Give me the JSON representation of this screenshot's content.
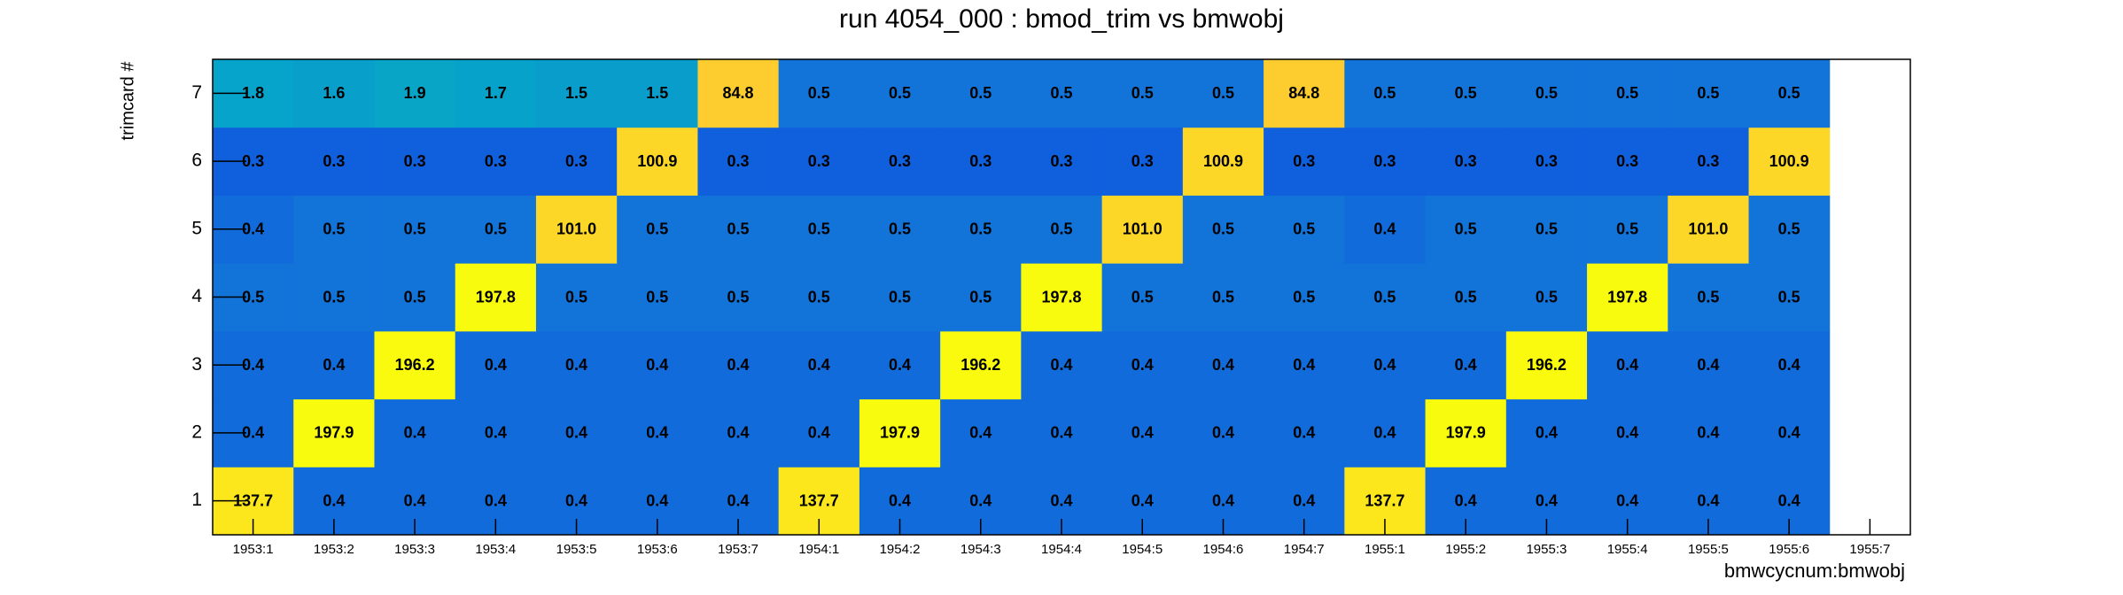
{
  "chart_data": {
    "type": "heatmap",
    "title": "run 4054_000 : bmod_trim vs bmwobj",
    "x_label": "bmwcycnum:bmwobj",
    "y_label": "trimcard #",
    "z_log": true,
    "categories": [
      "1953:1",
      "1953:2",
      "1953:3",
      "1953:4",
      "1953:5",
      "1953:6",
      "1953:7",
      "1954:1",
      "1954:2",
      "1954:3",
      "1954:4",
      "1954:5",
      "1954:6",
      "1954:7",
      "1955:1",
      "1955:2",
      "1955:3",
      "1955:4",
      "1955:5",
      "1955:6",
      "1955:7"
    ],
    "series": [
      {
        "name": "1",
        "values": [
          137.7,
          0.4,
          0.4,
          0.4,
          0.4,
          0.4,
          0.4,
          137.7,
          0.4,
          0.4,
          0.4,
          0.4,
          0.4,
          0.4,
          137.7,
          0.4,
          0.4,
          0.4,
          0.4,
          0.4,
          null
        ],
        "value_labels": [
          "137.7",
          "0.4",
          "0.4",
          "0.4",
          "0.4",
          "0.4",
          "0.4",
          "137.7",
          "0.4",
          "0.4",
          "0.4",
          "0.4",
          "0.4",
          "0.4",
          "137.7",
          "0.4",
          "0.4",
          "0.4",
          "0.4",
          "0.4",
          null
        ]
      },
      {
        "name": "2",
        "values": [
          0.4,
          197.9,
          0.4,
          0.4,
          0.4,
          0.4,
          0.4,
          0.4,
          197.9,
          0.4,
          0.4,
          0.4,
          0.4,
          0.4,
          0.4,
          197.9,
          0.4,
          0.4,
          0.4,
          0.4,
          null
        ],
        "value_labels": [
          "0.4",
          "197.9",
          "0.4",
          "0.4",
          "0.4",
          "0.4",
          "0.4",
          "0.4",
          "197.9",
          "0.4",
          "0.4",
          "0.4",
          "0.4",
          "0.4",
          "0.4",
          "197.9",
          "0.4",
          "0.4",
          "0.4",
          "0.4",
          null
        ]
      },
      {
        "name": "3",
        "values": [
          0.4,
          0.4,
          196.2,
          0.4,
          0.4,
          0.4,
          0.4,
          0.4,
          0.4,
          196.2,
          0.4,
          0.4,
          0.4,
          0.4,
          0.4,
          0.4,
          196.2,
          0.4,
          0.4,
          0.4,
          null
        ],
        "value_labels": [
          "0.4",
          "0.4",
          "196.2",
          "0.4",
          "0.4",
          "0.4",
          "0.4",
          "0.4",
          "0.4",
          "196.2",
          "0.4",
          "0.4",
          "0.4",
          "0.4",
          "0.4",
          "0.4",
          "196.2",
          "0.4",
          "0.4",
          "0.4",
          null
        ]
      },
      {
        "name": "4",
        "values": [
          0.5,
          0.5,
          0.5,
          197.8,
          0.5,
          0.5,
          0.5,
          0.5,
          0.5,
          0.5,
          197.8,
          0.5,
          0.5,
          0.5,
          0.5,
          0.5,
          0.5,
          197.8,
          0.5,
          0.5,
          null
        ],
        "value_labels": [
          "0.5",
          "0.5",
          "0.5",
          "197.8",
          "0.5",
          "0.5",
          "0.5",
          "0.5",
          "0.5",
          "0.5",
          "197.8",
          "0.5",
          "0.5",
          "0.5",
          "0.5",
          "0.5",
          "0.5",
          "197.8",
          "0.5",
          "0.5",
          null
        ]
      },
      {
        "name": "5",
        "values": [
          0.4,
          0.5,
          0.5,
          0.5,
          101.0,
          0.5,
          0.5,
          0.5,
          0.5,
          0.5,
          0.5,
          101.0,
          0.5,
          0.5,
          0.4,
          0.5,
          0.5,
          0.5,
          101.0,
          0.5,
          null
        ],
        "value_labels": [
          "0.4",
          "0.5",
          "0.5",
          "0.5",
          "101.0",
          "0.5",
          "0.5",
          "0.5",
          "0.5",
          "0.5",
          "0.5",
          "101.0",
          "0.5",
          "0.5",
          "0.4",
          "0.5",
          "0.5",
          "0.5",
          "101.0",
          "0.5",
          null
        ]
      },
      {
        "name": "6",
        "values": [
          0.3,
          0.3,
          0.3,
          0.3,
          0.3,
          100.9,
          0.3,
          0.3,
          0.3,
          0.3,
          0.3,
          0.3,
          100.9,
          0.3,
          0.3,
          0.3,
          0.3,
          0.3,
          0.3,
          100.9,
          null
        ],
        "value_labels": [
          "0.3",
          "0.3",
          "0.3",
          "0.3",
          "0.3",
          "100.9",
          "0.3",
          "0.3",
          "0.3",
          "0.3",
          "0.3",
          "0.3",
          "100.9",
          "0.3",
          "0.3",
          "0.3",
          "0.3",
          "0.3",
          "0.3",
          "100.9",
          null
        ]
      },
      {
        "name": "7",
        "values": [
          1.8,
          1.6,
          1.9,
          1.7,
          1.5,
          1.5,
          84.8,
          0.5,
          0.5,
          0.5,
          0.5,
          0.5,
          0.5,
          84.8,
          0.5,
          0.5,
          0.5,
          0.5,
          0.5,
          0.5,
          null
        ],
        "value_labels": [
          "1.8",
          "1.6",
          "1.9",
          "1.7",
          "1.5",
          "1.5",
          "84.8",
          "0.5",
          "0.5",
          "0.5",
          "0.5",
          "0.5",
          "0.5",
          "84.8",
          "0.5",
          "0.5",
          "0.5",
          "0.5",
          "0.5",
          "0.5",
          null
        ]
      }
    ]
  }
}
